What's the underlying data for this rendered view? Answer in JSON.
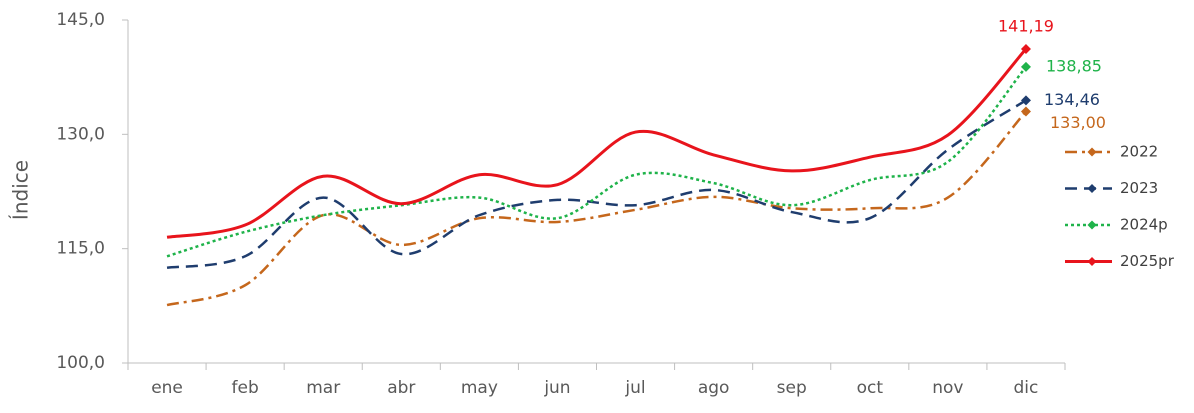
{
  "chart_data": {
    "type": "line",
    "ylabel": "Índice",
    "categories": [
      "ene",
      "feb",
      "mar",
      "abr",
      "may",
      "jun",
      "jul",
      "ago",
      "sep",
      "oct",
      "nov",
      "dic"
    ],
    "ylim": [
      100,
      145
    ],
    "yticks": [
      {
        "value": 100,
        "label": "100,0"
      },
      {
        "value": 115,
        "label": "115,0"
      },
      {
        "value": 130,
        "label": "130,0"
      },
      {
        "value": 145,
        "label": "145,0"
      }
    ],
    "legend": "right",
    "series": [
      {
        "name": "2022",
        "color": "#c5671c",
        "line_style": "dash-dot",
        "values": [
          107.6,
          110.2,
          119.4,
          115.5,
          119.0,
          118.5,
          120.1,
          121.8,
          120.3,
          120.3,
          121.7,
          133.0
        ],
        "value_labels": [
          null,
          null,
          null,
          null,
          null,
          null,
          null,
          null,
          null,
          null,
          null,
          "133,00"
        ]
      },
      {
        "name": "2023",
        "color": "#1f3d6e",
        "line_style": "dashed",
        "values": [
          112.5,
          114.0,
          121.7,
          114.3,
          119.4,
          121.4,
          120.7,
          122.7,
          119.8,
          119.0,
          128.0,
          134.46
        ],
        "value_labels": [
          null,
          null,
          null,
          null,
          null,
          null,
          null,
          null,
          null,
          null,
          null,
          "134,46"
        ]
      },
      {
        "name": "2024p",
        "color": "#1fb34a",
        "line_style": "dotted",
        "values": [
          114.0,
          117.2,
          119.4,
          120.7,
          121.7,
          119.0,
          124.7,
          123.6,
          120.7,
          124.0,
          126.4,
          138.85
        ],
        "value_labels": [
          null,
          null,
          null,
          null,
          null,
          null,
          null,
          null,
          null,
          null,
          null,
          "138,85"
        ]
      },
      {
        "name": "2025pr",
        "color": "#e8141c",
        "line_style": "solid",
        "values": [
          116.5,
          118.1,
          124.5,
          120.9,
          124.7,
          123.4,
          130.3,
          127.3,
          125.2,
          127.0,
          129.9,
          141.19
        ],
        "value_labels": [
          null,
          null,
          null,
          null,
          null,
          null,
          null,
          null,
          null,
          null,
          null,
          "141,19"
        ]
      }
    ]
  }
}
